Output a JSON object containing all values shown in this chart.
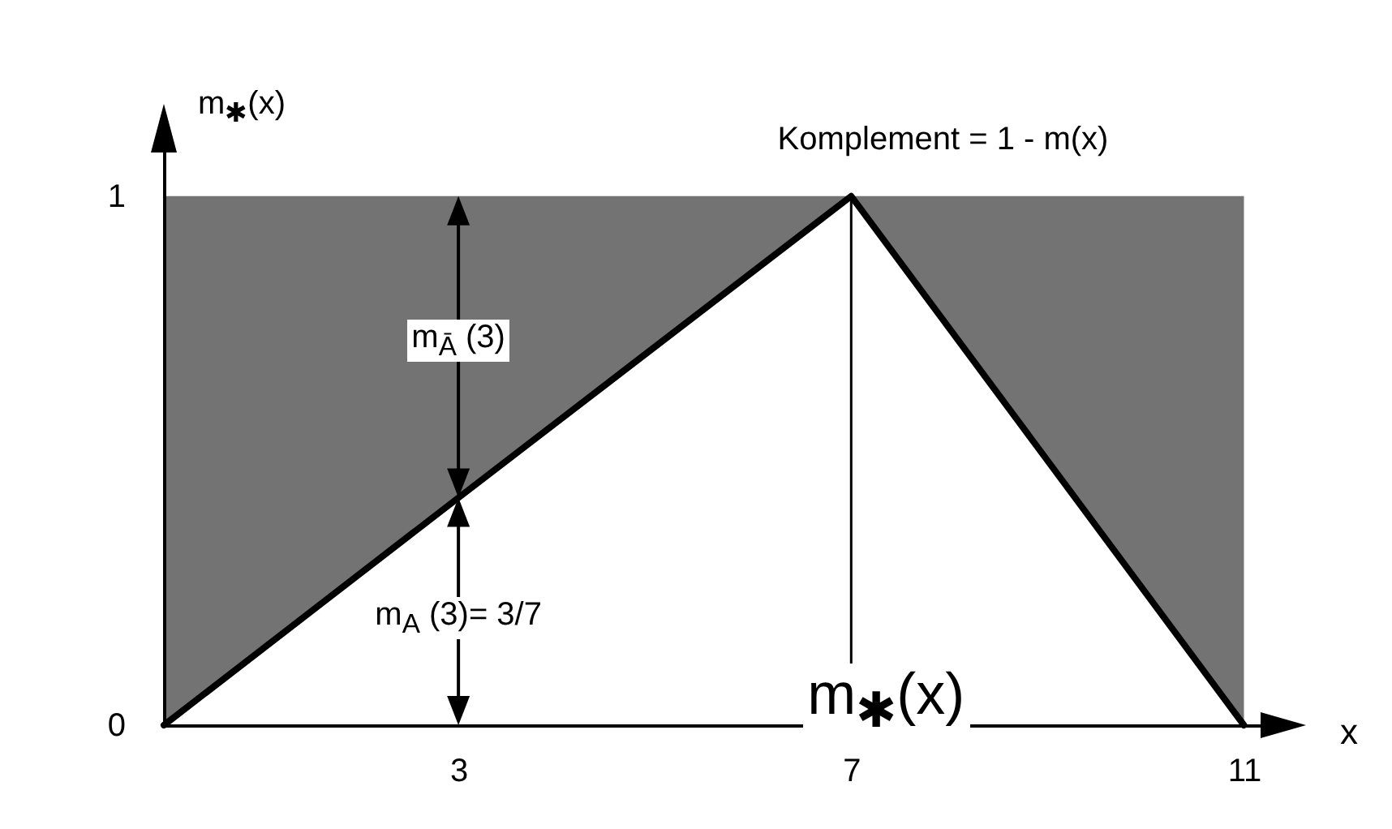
{
  "chart_data": {
    "type": "line",
    "xlabel": "x",
    "ylabel": "m$_{✱}$(x)",
    "x": [
      0,
      3,
      7,
      11
    ],
    "series": [
      {
        "name": "m$_{✱}$(x)",
        "color": "#000000",
        "values": [
          0,
          0.43,
          1,
          0
        ],
        "lower": [
          0,
          0.43,
          1,
          0
        ],
        "upper": [
          1,
          1,
          1,
          1
        ]
      }
    ],
    "xlim": [
      0,
      11.5
    ],
    "ylim": [
      0,
      1.15
    ],
    "xticks": [
      3,
      7,
      11
    ],
    "yticks": [
      0,
      1
    ],
    "ref_lines": [
      {
        "axis": "x",
        "value": 7
      }
    ],
    "annotations": [
      "Komplement = 1 - m(x)",
      "m$_{Ā}$ (3)",
      "m$_{A}$ (3)= 3/7"
    ]
  }
}
